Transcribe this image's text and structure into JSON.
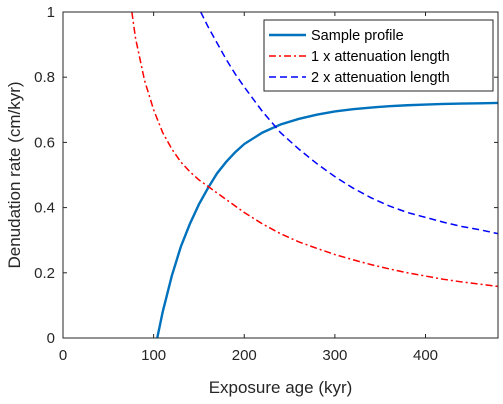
{
  "chart_data": {
    "type": "line",
    "xlabel": "Exposure age (kyr)",
    "ylabel": "Denudation rate (cm/kyr)",
    "xlim": [
      0,
      480
    ],
    "ylim": [
      0,
      1
    ],
    "xticks": [
      0,
      100,
      200,
      300,
      400
    ],
    "yticks": [
      0,
      0.2,
      0.4,
      0.6,
      0.8,
      1
    ],
    "xtick_labels": [
      "0",
      "100",
      "200",
      "300",
      "400"
    ],
    "ytick_labels": [
      "0",
      "0.2",
      "0.4",
      "0.6",
      "0.8",
      "1"
    ],
    "grid": false,
    "legend_position": "top-right",
    "series": [
      {
        "name": "Sample profile",
        "color": "#0072bd",
        "dash": "solid",
        "x": [
          104,
          110,
          120,
          130,
          140,
          150,
          160,
          170,
          180,
          190,
          200,
          220,
          240,
          260,
          280,
          300,
          320,
          340,
          360,
          380,
          400,
          420,
          440,
          460,
          480
        ],
        "y": [
          0.0,
          0.08,
          0.19,
          0.28,
          0.35,
          0.41,
          0.46,
          0.505,
          0.54,
          0.57,
          0.595,
          0.63,
          0.655,
          0.672,
          0.685,
          0.695,
          0.702,
          0.707,
          0.711,
          0.714,
          0.716,
          0.718,
          0.719,
          0.72,
          0.721
        ]
      },
      {
        "name": "1 x attenuation length",
        "color": "#ff0000",
        "dash": "dashdot",
        "x": [
          76,
          80,
          90,
          100,
          110,
          120,
          130,
          140,
          150,
          160,
          170,
          180,
          200,
          220,
          240,
          260,
          280,
          300,
          320,
          340,
          360,
          380,
          400,
          420,
          440,
          460,
          480
        ],
        "y": [
          1.0,
          0.92,
          0.79,
          0.7,
          0.63,
          0.58,
          0.54,
          0.51,
          0.485,
          0.465,
          0.445,
          0.425,
          0.385,
          0.35,
          0.32,
          0.295,
          0.275,
          0.256,
          0.24,
          0.225,
          0.212,
          0.2,
          0.19,
          0.18,
          0.172,
          0.165,
          0.158
        ]
      },
      {
        "name": "2 x attenuation length",
        "color": "#0000ff",
        "dash": "dashed",
        "x": [
          152,
          160,
          170,
          180,
          190,
          200,
          220,
          240,
          260,
          280,
          300,
          320,
          340,
          360,
          380,
          400,
          420,
          440,
          460,
          480
        ],
        "y": [
          1.0,
          0.955,
          0.905,
          0.855,
          0.81,
          0.77,
          0.695,
          0.63,
          0.58,
          0.535,
          0.495,
          0.46,
          0.43,
          0.405,
          0.385,
          0.37,
          0.355,
          0.342,
          0.332,
          0.32
        ]
      }
    ]
  }
}
